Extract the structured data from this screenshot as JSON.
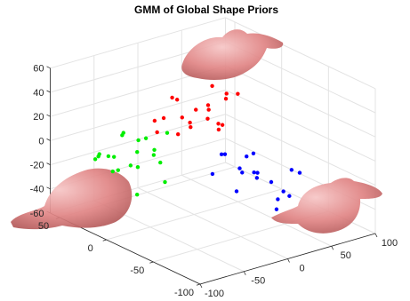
{
  "chart_data": {
    "type": "scatter3d",
    "title": "GMM of Global Shape Priors",
    "xlim": [
      -100,
      60
    ],
    "ylim": [
      -100,
      100
    ],
    "zlim": [
      -60,
      60
    ],
    "xticks": [
      -100,
      -50,
      0,
      50
    ],
    "yticks": [
      -100,
      -50,
      0,
      50,
      100
    ],
    "zticks": [
      -60,
      -40,
      -20,
      0,
      20,
      40,
      60
    ],
    "grid": true,
    "series": [
      {
        "color": "#ff0000",
        "x": [
          -10,
          -25,
          -5,
          -30,
          -15,
          -20,
          0,
          -35,
          -10,
          -25,
          -40,
          -5,
          -20,
          -30,
          -15,
          0,
          -45,
          -28,
          -12,
          -22
        ],
        "y": [
          -30,
          -10,
          -40,
          5,
          -20,
          -35,
          -25,
          -5,
          10,
          -45,
          -15,
          -10,
          15,
          -30,
          0,
          -45,
          -20,
          20,
          -55,
          -8
        ],
        "z": [
          45,
          38,
          30,
          50,
          22,
          35,
          42,
          28,
          48,
          25,
          33,
          20,
          40,
          44,
          36,
          27,
          31,
          46,
          24,
          29
        ]
      },
      {
        "color": "#00ee00",
        "x": [
          30,
          15,
          25,
          5,
          35,
          20,
          10,
          40,
          0,
          28,
          18,
          8,
          32,
          22,
          12,
          38,
          3,
          26,
          14,
          45
        ],
        "y": [
          -50,
          -30,
          -60,
          -40,
          -35,
          -70,
          -20,
          -55,
          -65,
          -25,
          -45,
          -55,
          -75,
          -15,
          -80,
          -40,
          -30,
          -85,
          -50,
          -60
        ],
        "z": [
          5,
          -10,
          -20,
          0,
          -25,
          -5,
          8,
          -15,
          -30,
          -2,
          -18,
          10,
          -8,
          -22,
          -12,
          2,
          -28,
          -6,
          -3,
          -14
        ]
      },
      {
        "color": "#0000ff",
        "x": [
          -30,
          -45,
          -20,
          -55,
          -35,
          -50,
          -25,
          -40,
          -60,
          -15,
          -48,
          -38,
          -28,
          -58,
          -42,
          -33,
          -22,
          -52
        ],
        "y": [
          20,
          40,
          10,
          50,
          35,
          15,
          45,
          25,
          30,
          5,
          60,
          55,
          30,
          40,
          10,
          0,
          25,
          65
        ],
        "z": [
          -15,
          -25,
          -5,
          -35,
          -20,
          -10,
          -30,
          0,
          -40,
          -22,
          -18,
          -45,
          -8,
          -28,
          -12,
          2,
          -38,
          -20
        ]
      }
    ]
  }
}
